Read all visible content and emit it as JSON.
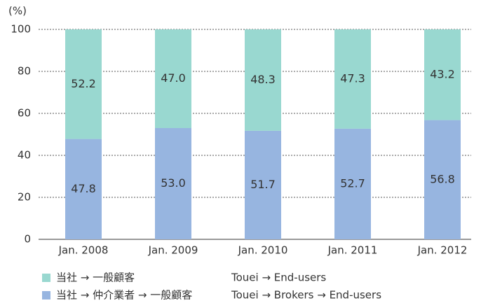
{
  "chart_data": {
    "type": "stacked_bar",
    "y_axis_label": "(%)",
    "categories": [
      "Jan. 2008",
      "Jan. 2009",
      "Jan. 2010",
      "Jan. 2011",
      "Jan. 2012"
    ],
    "series": [
      {
        "name": "当社 → 仲介業者 → 一般顧客",
        "name_en": "Touei → Brokers → End-users",
        "color": "#97b5e0",
        "values": [
          47.8,
          53.0,
          51.7,
          52.7,
          56.8
        ],
        "value_labels": [
          "47.8",
          "53.0",
          "51.7",
          "52.7",
          "56.8"
        ]
      },
      {
        "name": "当社 → 一般顧客",
        "name_en": "Touei → End-users",
        "color": "#99d8d0",
        "values": [
          52.2,
          47.0,
          48.3,
          47.3,
          43.2
        ],
        "value_labels": [
          "52.2",
          "47.0",
          "48.3",
          "47.3",
          "43.2"
        ]
      }
    ],
    "ylim": [
      0,
      100
    ],
    "yticks": [
      0,
      20,
      40,
      60,
      80,
      100
    ],
    "grid": true
  }
}
